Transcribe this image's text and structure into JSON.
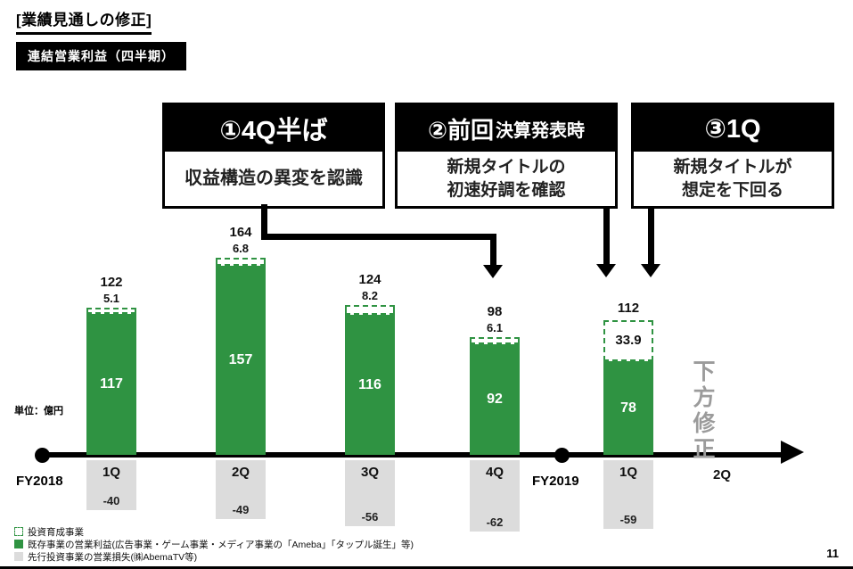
{
  "colors": {
    "green": "#2f9342",
    "loss_gray": "#dcdcdc",
    "revision_gray": "#9b9b9b"
  },
  "header": {
    "title": "[業績見通しの修正]",
    "badge": "連結営業利益（四半期）"
  },
  "callouts": [
    {
      "header": "①4Q半ば",
      "body": [
        "収益構造の異変を認識"
      ]
    },
    {
      "header_main": "②前回",
      "header_sub": "決算発表時",
      "body": [
        "新規タイトルの",
        "初速好調を確認"
      ]
    },
    {
      "header": "③1Q",
      "body": [
        "新規タイトルが",
        "想定を下回る"
      ]
    }
  ],
  "axis": {
    "fy2018": "FY2018",
    "fy2019": "FY2019",
    "unit_label": "単位：億円"
  },
  "annotations": {
    "downward_revision": "下方修正"
  },
  "chart_data": {
    "type": "bar",
    "stacked": true,
    "title": "連結営業利益（四半期）",
    "unit": "億円",
    "categories": [
      "1Q",
      "2Q",
      "3Q",
      "4Q",
      "1Q",
      "2Q"
    ],
    "category_fiscal_year": [
      "FY2018",
      "FY2018",
      "FY2018",
      "FY2018",
      "FY2019",
      "FY2019"
    ],
    "totals": [
      122,
      164,
      124,
      98,
      112,
      null
    ],
    "series": [
      {
        "name": "投資育成事業",
        "style": "dashed-outline-green",
        "values": [
          5.1,
          6.8,
          8.2,
          6.1,
          33.9,
          null
        ]
      },
      {
        "name": "既存事業の営業利益",
        "style": "solid-green",
        "values": [
          117,
          157,
          116,
          92,
          78,
          null
        ]
      },
      {
        "name": "先行投資事業の営業損失",
        "style": "gray-below-axis",
        "values": [
          -40,
          -49,
          -56,
          -62,
          -59,
          null
        ]
      }
    ],
    "annotations": [
      "下方修正"
    ],
    "legend_position": "bottom-left",
    "grid": false
  },
  "legend": [
    {
      "swatch": "dashed-green",
      "label": "投資育成事業"
    },
    {
      "swatch": "solid-green",
      "label": "既存事業の営業利益(広告事業・ゲーム事業・メディア事業の「Ameba」「タップル誕生」等)"
    },
    {
      "swatch": "gray",
      "label": "先行投資事業の営業損失(㈱AbemaTV等)"
    }
  ],
  "misc": {
    "page_number": "11"
  }
}
